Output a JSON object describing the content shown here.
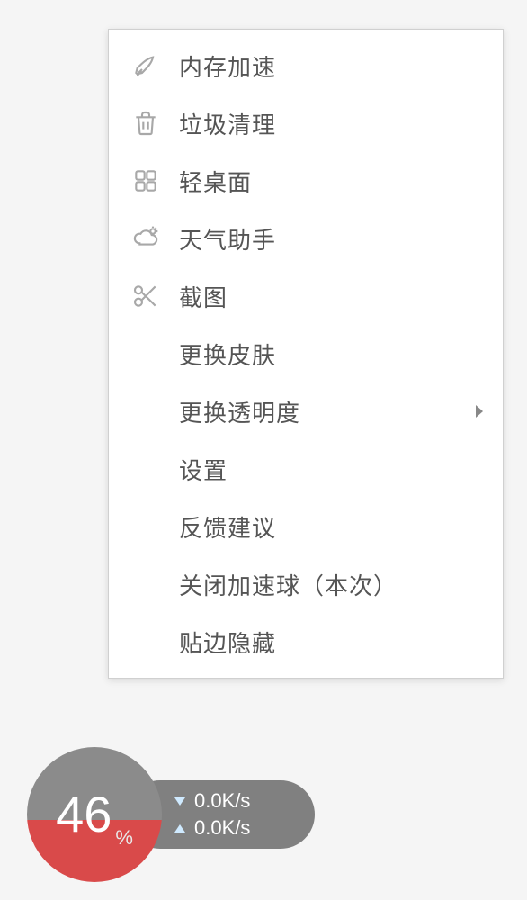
{
  "menu": {
    "background_color": "#ffffff",
    "border_color": "#d0d0d0",
    "text_color": "#555555",
    "font_size": 26,
    "icon_color": "#a8a8a8",
    "items": [
      {
        "id": "memory-boost",
        "label": "内存加速",
        "icon": "rocket",
        "has_submenu": false
      },
      {
        "id": "trash-clean",
        "label": "垃圾清理",
        "icon": "trash",
        "has_submenu": false
      },
      {
        "id": "light-desktop",
        "label": "轻桌面",
        "icon": "grid",
        "has_submenu": false
      },
      {
        "id": "weather-helper",
        "label": "天气助手",
        "icon": "weather",
        "has_submenu": false
      },
      {
        "id": "screenshot",
        "label": "截图",
        "icon": "scissors",
        "has_submenu": false
      },
      {
        "id": "change-skin",
        "label": "更换皮肤",
        "icon": null,
        "has_submenu": false
      },
      {
        "id": "change-opacity",
        "label": "更换透明度",
        "icon": null,
        "has_submenu": true
      },
      {
        "id": "settings",
        "label": "设置",
        "icon": null,
        "has_submenu": false
      },
      {
        "id": "feedback",
        "label": "反馈建议",
        "icon": null,
        "has_submenu": false
      },
      {
        "id": "close-ball",
        "label": "关闭加速球（本次）",
        "icon": null,
        "has_submenu": false
      },
      {
        "id": "edge-hide",
        "label": "贴边隐藏",
        "icon": null,
        "has_submenu": false
      }
    ]
  },
  "speedball": {
    "percent_value": "46",
    "percent_unit": "%",
    "ball_top_color": "#8b8b8b",
    "ball_bottom_color": "#d94a4a",
    "ball_fill_percent": 46,
    "ball_text_color": "#ffffff",
    "ball_num_fontsize": 56,
    "pill_bg_color": "#808080",
    "pill_text_color": "#ffffff",
    "speed_fontsize": 22,
    "download_speed": "0.0K/s",
    "upload_speed": "0.0K/s",
    "arrow_color": "#cfeaff"
  }
}
